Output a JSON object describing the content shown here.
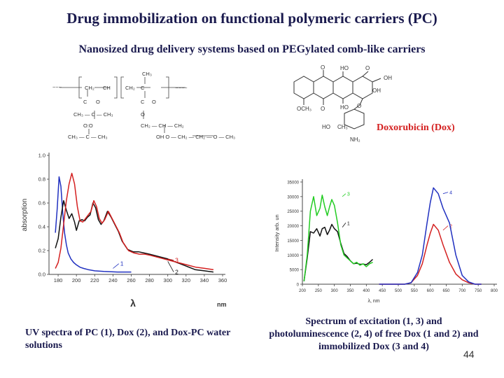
{
  "title": "Drug immobilization on functional polymeric carriers (PC)",
  "subtitle": "Nanosized drug delivery systems based on PEGylated comb-like carriers",
  "dox_label": "Doxorubicin (Dox)",
  "colors": {
    "text": "#1a1a4e",
    "red": "#d42020",
    "blue": "#2030c0",
    "black": "#111111",
    "green": "#22cc22",
    "dox_label": "#d42020"
  },
  "left_caption": "UV spectra of PC (1), Dox (2), and Dox-PC water solutions",
  "right_caption": "Spectrum of excitation (1, 3) and photoluminescence (2, 4) of free Dox (1 and 2) and immobilized Dox (3 and 4)",
  "page_number": "44",
  "chart_data": [
    {
      "type": "line",
      "xlabel": "λ",
      "xunit": "nm",
      "ylabel": "absorption",
      "xlim": [
        170,
        360
      ],
      "ylim": [
        0,
        1.0
      ],
      "xticks": [
        "180",
        "200",
        "220",
        "240",
        "260",
        "280",
        "300",
        "320",
        "340",
        "360"
      ],
      "yticks": [
        "0.0",
        "0.2",
        "0.4",
        "0.6",
        "0.8",
        "1.0"
      ],
      "grid": false,
      "series": [
        {
          "name": "1",
          "color": "#2030c0",
          "x": [
            177,
            179,
            181,
            183,
            185,
            187,
            189,
            191,
            194,
            197,
            200,
            204,
            208,
            213,
            220,
            230,
            245,
            260
          ],
          "y": [
            0.35,
            0.55,
            0.82,
            0.74,
            0.52,
            0.35,
            0.25,
            0.18,
            0.13,
            0.1,
            0.08,
            0.06,
            0.05,
            0.04,
            0.03,
            0.025,
            0.02,
            0.02
          ]
        },
        {
          "name": "2",
          "color": "#111111",
          "x": [
            177,
            180,
            183,
            186,
            189,
            192,
            195,
            198,
            200,
            203,
            206,
            209,
            212,
            215,
            218,
            221,
            224,
            227,
            230,
            234,
            238,
            242,
            246,
            250,
            256,
            262,
            268,
            274,
            280,
            290,
            300,
            310,
            320,
            330,
            340,
            350
          ],
          "y": [
            0.22,
            0.3,
            0.48,
            0.62,
            0.54,
            0.47,
            0.51,
            0.44,
            0.37,
            0.45,
            0.46,
            0.45,
            0.48,
            0.5,
            0.6,
            0.56,
            0.46,
            0.42,
            0.45,
            0.53,
            0.48,
            0.42,
            0.36,
            0.28,
            0.21,
            0.19,
            0.19,
            0.18,
            0.17,
            0.15,
            0.13,
            0.1,
            0.07,
            0.04,
            0.03,
            0.02
          ]
        },
        {
          "name": "3",
          "color": "#d42020",
          "x": [
            177,
            180,
            183,
            186,
            189,
            192,
            195,
            198,
            201,
            204,
            207,
            210,
            213,
            216,
            219,
            222,
            225,
            228,
            231,
            235,
            239,
            243,
            247,
            251,
            257,
            263,
            269,
            275,
            281,
            291,
            301,
            311,
            321,
            331,
            341,
            350
          ],
          "y": [
            0.05,
            0.1,
            0.22,
            0.42,
            0.62,
            0.76,
            0.85,
            0.76,
            0.57,
            0.45,
            0.44,
            0.47,
            0.5,
            0.53,
            0.62,
            0.57,
            0.47,
            0.43,
            0.46,
            0.53,
            0.47,
            0.41,
            0.35,
            0.27,
            0.2,
            0.18,
            0.17,
            0.17,
            0.16,
            0.14,
            0.12,
            0.1,
            0.08,
            0.06,
            0.05,
            0.04
          ]
        }
      ]
    },
    {
      "type": "line",
      "xlabel": "λ, nm",
      "ylabel": "Intensity arb. un",
      "xlim": [
        200,
        800
      ],
      "ylim": [
        0,
        35000
      ],
      "xticks": [
        "200",
        "250",
        "300",
        "350",
        "400",
        "450",
        "500",
        "550",
        "600",
        "650",
        "700",
        "750",
        "800"
      ],
      "yticks": [
        "0",
        "5000",
        "10000",
        "15000",
        "20000",
        "25000",
        "30000",
        "35000"
      ],
      "grid": false,
      "series": [
        {
          "name": "1",
          "color": "#111111",
          "x": [
            205,
            215,
            225,
            235,
            245,
            255,
            262,
            270,
            278,
            285,
            292,
            300,
            310,
            320,
            330,
            340,
            350,
            360,
            370,
            380,
            390,
            400,
            410,
            420
          ],
          "y": [
            1000,
            9000,
            18000,
            17500,
            19000,
            16500,
            19000,
            19500,
            17000,
            18500,
            20500,
            19000,
            18000,
            14000,
            10500,
            9500,
            8000,
            7000,
            7200,
            6800,
            6900,
            6700,
            7500,
            8500
          ]
        },
        {
          "name": "3",
          "color": "#22cc22",
          "x": [
            205,
            215,
            225,
            235,
            245,
            255,
            262,
            270,
            278,
            285,
            292,
            300,
            310,
            320,
            330,
            340,
            350,
            360,
            370,
            380,
            390,
            400,
            410,
            420
          ],
          "y": [
            1000,
            10000,
            25000,
            30000,
            23500,
            26000,
            30500,
            26500,
            23500,
            26500,
            29000,
            27000,
            21000,
            13500,
            10000,
            9000,
            8000,
            7000,
            7500,
            6500,
            7000,
            6000,
            7000,
            7500
          ]
        },
        {
          "name": "2",
          "color": "#d42020",
          "x": [
            440,
            460,
            480,
            500,
            520,
            540,
            560,
            575,
            590,
            600,
            610,
            625,
            640,
            660,
            680,
            700,
            720,
            740,
            760
          ],
          "y": [
            0,
            0,
            0,
            0,
            0,
            500,
            3000,
            7000,
            13500,
            17500,
            20500,
            18500,
            13500,
            7500,
            3500,
            1500,
            500,
            0,
            0
          ]
        },
        {
          "name": "4",
          "color": "#2030c0",
          "x": [
            440,
            460,
            480,
            500,
            520,
            540,
            560,
            575,
            590,
            600,
            610,
            625,
            640,
            660,
            680,
            700,
            720,
            740,
            760
          ],
          "y": [
            0,
            0,
            0,
            0,
            0,
            500,
            4000,
            10000,
            21000,
            28000,
            33000,
            31000,
            26000,
            21000,
            10000,
            3000,
            800,
            0,
            0
          ]
        }
      ]
    }
  ]
}
